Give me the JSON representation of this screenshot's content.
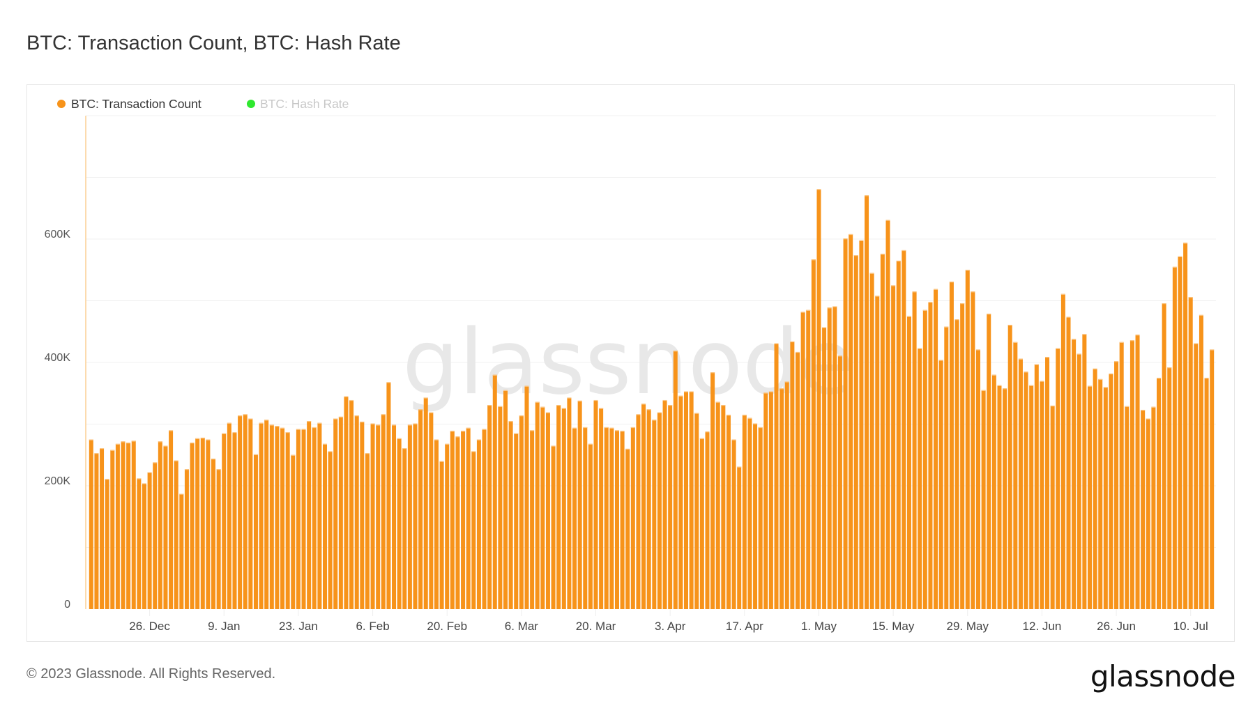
{
  "title": "BTC: Transaction Count, BTC: Hash Rate",
  "footer": "© 2023 Glassnode. All Rights Reserved.",
  "logo": "glassnode",
  "watermark": "glassnode",
  "chart_data": {
    "type": "bar",
    "title": "BTC: Transaction Count, BTC: Hash Rate",
    "legend": [
      {
        "name": "BTC: Transaction Count",
        "color": "#f7931a",
        "active": true
      },
      {
        "name": "BTC: Hash Rate",
        "color": "#2fe82f",
        "active": false
      }
    ],
    "legend_position": "top-left",
    "x_start": "2022-12-15",
    "x_end": "2023-07-14",
    "x_interval": "1 day",
    "x_ticks": [
      "26. Dec",
      "9. Jan",
      "23. Jan",
      "6. Feb",
      "20. Feb",
      "6. Mar",
      "20. Mar",
      "3. Apr",
      "17. Apr",
      "1. May",
      "15. May",
      "29. May",
      "12. Jun",
      "26. Jun",
      "10. Jul"
    ],
    "y_ticks": [
      "0",
      "200K",
      "400K",
      "600K"
    ],
    "y_tick_values": [
      0,
      200000,
      400000,
      600000
    ],
    "ylim": [
      0,
      800000
    ],
    "grid": true,
    "grid_step": 100000,
    "series": [
      {
        "name": "BTC: Transaction Count",
        "color": "#f7931a",
        "values": [
          275000,
          253000,
          261000,
          211000,
          258000,
          268000,
          272000,
          270000,
          273000,
          212000,
          204000,
          222000,
          238000,
          272000,
          265000,
          290000,
          241000,
          187000,
          227000,
          270000,
          277000,
          278000,
          275000,
          244000,
          227000,
          285000,
          302000,
          287000,
          314000,
          316000,
          309000,
          251000,
          302000,
          307000,
          299000,
          297000,
          294000,
          287000,
          250000,
          292000,
          292000,
          305000,
          295000,
          302000,
          268000,
          256000,
          309000,
          312000,
          345000,
          339000,
          314000,
          304000,
          253000,
          301000,
          299000,
          316000,
          368000,
          299000,
          277000,
          261000,
          299000,
          301000,
          324000,
          343000,
          319000,
          275000,
          240000,
          268000,
          289000,
          280000,
          289000,
          294000,
          256000,
          275000,
          292000,
          331000,
          380000,
          329000,
          355000,
          305000,
          285000,
          314000,
          362000,
          290000,
          336000,
          328000,
          319000,
          265000,
          331000,
          326000,
          343000,
          294000,
          338000,
          295000,
          268000,
          339000,
          326000,
          295000,
          294000,
          290000,
          289000,
          260000,
          295000,
          316000,
          333000,
          324000,
          307000,
          319000,
          339000,
          331000,
          419000,
          346000,
          353000,
          353000,
          318000,
          277000,
          288000,
          384000,
          336000,
          331000,
          315000,
          275000,
          231000,
          315000,
          310000,
          301000,
          295000,
          351000,
          353000,
          431000,
          358000,
          369000,
          434000,
          417000,
          482000,
          485000,
          567000,
          681000,
          457000,
          489000,
          491000,
          411000,
          601000,
          608000,
          574000,
          598000,
          671000,
          545000,
          508000,
          576000,
          631000,
          525000,
          565000,
          582000,
          475000,
          515000,
          423000,
          485000,
          498000,
          519000,
          404000,
          458000,
          531000,
          470000,
          496000,
          550000,
          515000,
          421000,
          355000,
          479000,
          380000,
          363000,
          358000,
          461000,
          433000,
          406000,
          385000,
          363000,
          397000,
          370000,
          409000,
          330000,
          423000,
          511000,
          474000,
          438000,
          414000,
          446000,
          362000,
          390000,
          373000,
          360000,
          382000,
          402000,
          433000,
          329000,
          436000,
          445000,
          323000,
          309000,
          328000,
          375000,
          496000,
          392000,
          555000,
          572000,
          594000,
          506000,
          431000,
          477000,
          375000,
          421000
        ]
      }
    ]
  }
}
